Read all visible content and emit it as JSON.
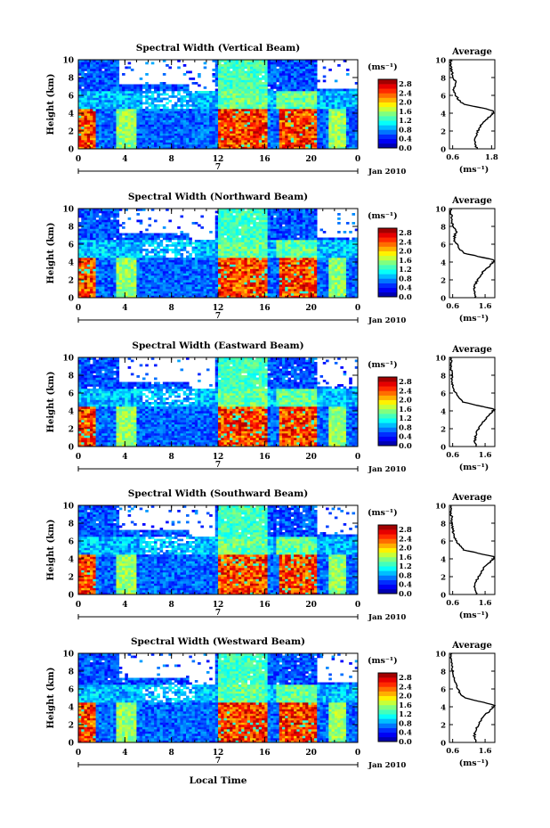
{
  "chart_data": [
    {
      "type": "heatmap",
      "title": "Spectral Width (Vertical Beam)",
      "ylabel": "Height (km)",
      "x_ticks": [
        "0",
        "4",
        "8",
        "12",
        "16",
        "20",
        "0"
      ],
      "y_ticks": [
        "0",
        "2",
        "4",
        "6",
        "8",
        "10"
      ],
      "xlim": [
        0,
        24
      ],
      "ylim": [
        0,
        10
      ],
      "day_label": "7",
      "month_label": "Jan 2010",
      "colorbar": {
        "unit": "(ms⁻¹)",
        "ticks": [
          "0.0",
          "0.4",
          "0.8",
          "1.2",
          "1.6",
          "2.0",
          "2.4",
          "2.8"
        ],
        "range": [
          0,
          3.0
        ]
      },
      "profile": {
        "title": "Average",
        "xlabel": "(ms⁻¹)",
        "x_ticks": [
          "0.6",
          "1.8"
        ],
        "xlim": [
          0.5,
          1.9
        ],
        "y_ticks": [
          "0",
          "2",
          "4",
          "6",
          "8",
          "10"
        ],
        "heights": [
          0,
          0.5,
          1,
          1.5,
          2,
          2.5,
          3,
          3.5,
          4,
          4.2,
          4.5,
          5,
          5.5,
          6,
          6.5,
          7,
          7.5,
          8,
          8.5,
          9,
          9.5,
          10
        ],
        "values": [
          1.35,
          1.3,
          1.28,
          1.32,
          1.38,
          1.45,
          1.55,
          1.7,
          1.85,
          1.9,
          1.6,
          0.95,
          0.78,
          0.7,
          0.62,
          0.65,
          0.7,
          0.6,
          0.58,
          0.56,
          0.55,
          0.55
        ]
      }
    },
    {
      "type": "heatmap",
      "title": "Spectral Width (Northward Beam)",
      "ylabel": "Height (km)",
      "x_ticks": [
        "0",
        "4",
        "8",
        "12",
        "16",
        "20",
        "0"
      ],
      "y_ticks": [
        "0",
        "2",
        "4",
        "6",
        "8",
        "10"
      ],
      "xlim": [
        0,
        24
      ],
      "ylim": [
        0,
        10
      ],
      "day_label": "7",
      "month_label": "Jan 2010",
      "colorbar": {
        "unit": "(ms⁻¹)",
        "ticks": [
          "0.0",
          "0.4",
          "0.8",
          "1.2",
          "1.6",
          "2.0",
          "2.4",
          "2.8"
        ],
        "range": [
          0,
          3.0
        ]
      },
      "profile": {
        "title": "Average",
        "xlabel": "(ms⁻¹)",
        "x_ticks": [
          "0.6",
          "1.6"
        ],
        "xlim": [
          0.5,
          1.9
        ],
        "y_ticks": [
          "0",
          "2",
          "4",
          "6",
          "8",
          "10"
        ],
        "heights": [
          0,
          0.5,
          1,
          1.5,
          2,
          2.5,
          3,
          3.5,
          4,
          4.2,
          4.5,
          5,
          5.5,
          6,
          6.5,
          7,
          7.5,
          8,
          8.5,
          9,
          9.5,
          10
        ],
        "values": [
          1.3,
          1.28,
          1.27,
          1.3,
          1.36,
          1.45,
          1.55,
          1.72,
          1.86,
          1.9,
          1.55,
          0.95,
          0.8,
          0.72,
          0.65,
          0.66,
          0.72,
          0.62,
          0.58,
          0.56,
          0.55,
          0.55
        ]
      }
    },
    {
      "type": "heatmap",
      "title": "Spectral Width (Eastward Beam)",
      "ylabel": "Height (km)",
      "x_ticks": [
        "0",
        "4",
        "8",
        "12",
        "16",
        "20",
        "0"
      ],
      "y_ticks": [
        "0",
        "2",
        "4",
        "6",
        "8",
        "10"
      ],
      "xlim": [
        0,
        24
      ],
      "ylim": [
        0,
        10
      ],
      "day_label": "7",
      "month_label": "Jan 2010",
      "colorbar": {
        "unit": "(ms⁻¹)",
        "ticks": [
          "0.0",
          "0.4",
          "0.8",
          "1.2",
          "1.6",
          "2.0",
          "2.4",
          "2.8"
        ],
        "range": [
          0,
          3.0
        ]
      },
      "profile": {
        "title": "Average",
        "xlabel": "(ms⁻¹)",
        "x_ticks": [
          "0.6",
          "1.6"
        ],
        "xlim": [
          0.5,
          1.9
        ],
        "y_ticks": [
          "0",
          "2",
          "4",
          "6",
          "8",
          "10"
        ],
        "heights": [
          0,
          0.5,
          1,
          1.5,
          2,
          2.5,
          3,
          3.5,
          4,
          4.2,
          4.5,
          5,
          5.5,
          6,
          6.5,
          7,
          7.5,
          8,
          8.5,
          9,
          9.5,
          10
        ],
        "values": [
          1.32,
          1.28,
          1.3,
          1.34,
          1.4,
          1.48,
          1.58,
          1.72,
          1.85,
          1.88,
          1.5,
          0.92,
          0.78,
          0.7,
          0.62,
          0.6,
          0.58,
          0.57,
          0.56,
          0.55,
          0.55,
          0.55
        ]
      }
    },
    {
      "type": "heatmap",
      "title": "Spectral Width (Southward Beam)",
      "ylabel": "Height (km)",
      "x_ticks": [
        "0",
        "4",
        "8",
        "12",
        "16",
        "20",
        "0"
      ],
      "y_ticks": [
        "0",
        "2",
        "4",
        "6",
        "8",
        "10"
      ],
      "xlim": [
        0,
        24
      ],
      "ylim": [
        0,
        10
      ],
      "day_label": "7",
      "month_label": "Jan 2010",
      "colorbar": {
        "unit": "(ms⁻¹)",
        "ticks": [
          "0.0",
          "0.4",
          "0.8",
          "1.2",
          "1.6",
          "2.0",
          "2.4",
          "2.8"
        ],
        "range": [
          0,
          3.0
        ]
      },
      "profile": {
        "title": "Average",
        "xlabel": "(ms⁻¹)",
        "x_ticks": [
          "0.6",
          "1.6"
        ],
        "xlim": [
          0.5,
          1.9
        ],
        "y_ticks": [
          "0",
          "2",
          "4",
          "6",
          "8",
          "10"
        ],
        "heights": [
          0,
          0.5,
          1,
          1.5,
          2,
          2.5,
          3,
          3.5,
          4,
          4.2,
          4.5,
          5,
          5.5,
          6,
          6.5,
          7,
          7.5,
          8,
          8.5,
          9,
          9.5,
          10
        ],
        "values": [
          1.35,
          1.3,
          1.28,
          1.33,
          1.4,
          1.47,
          1.57,
          1.72,
          1.85,
          1.9,
          1.55,
          0.95,
          0.8,
          0.72,
          0.65,
          0.62,
          0.6,
          0.58,
          0.57,
          0.56,
          0.55,
          0.55
        ]
      }
    },
    {
      "type": "heatmap",
      "title": "Spectral Width (Westward Beam)",
      "ylabel": "Height (km)",
      "x_ticks": [
        "0",
        "4",
        "8",
        "12",
        "16",
        "20",
        "0"
      ],
      "y_ticks": [
        "0",
        "2",
        "4",
        "6",
        "8",
        "10"
      ],
      "xlim": [
        0,
        24
      ],
      "ylim": [
        0,
        10
      ],
      "day_label": "7",
      "month_label": "Jan 2010",
      "xlabel": "Local Time",
      "colorbar": {
        "unit": "(ms⁻¹)",
        "ticks": [
          "0.0",
          "0.4",
          "0.8",
          "1.2",
          "1.6",
          "2.0",
          "2.4",
          "2.8"
        ],
        "range": [
          0,
          3.0
        ]
      },
      "profile": {
        "title": "Average",
        "xlabel": "(ms⁻¹)",
        "x_ticks": [
          "0.6",
          "1.6"
        ],
        "xlim": [
          0.5,
          1.9
        ],
        "y_ticks": [
          "0",
          "2",
          "4",
          "6",
          "8",
          "10"
        ],
        "heights": [
          0,
          0.5,
          1,
          1.5,
          2,
          2.5,
          3,
          3.5,
          4,
          4.2,
          4.5,
          5,
          5.5,
          6,
          6.5,
          7,
          7.5,
          8,
          8.5,
          9,
          9.5,
          10
        ],
        "values": [
          1.32,
          1.28,
          1.27,
          1.32,
          1.4,
          1.48,
          1.58,
          1.72,
          1.86,
          1.9,
          1.55,
          0.96,
          0.82,
          0.76,
          0.72,
          0.68,
          0.62,
          0.6,
          0.58,
          0.56,
          0.55,
          0.55
        ]
      }
    }
  ]
}
